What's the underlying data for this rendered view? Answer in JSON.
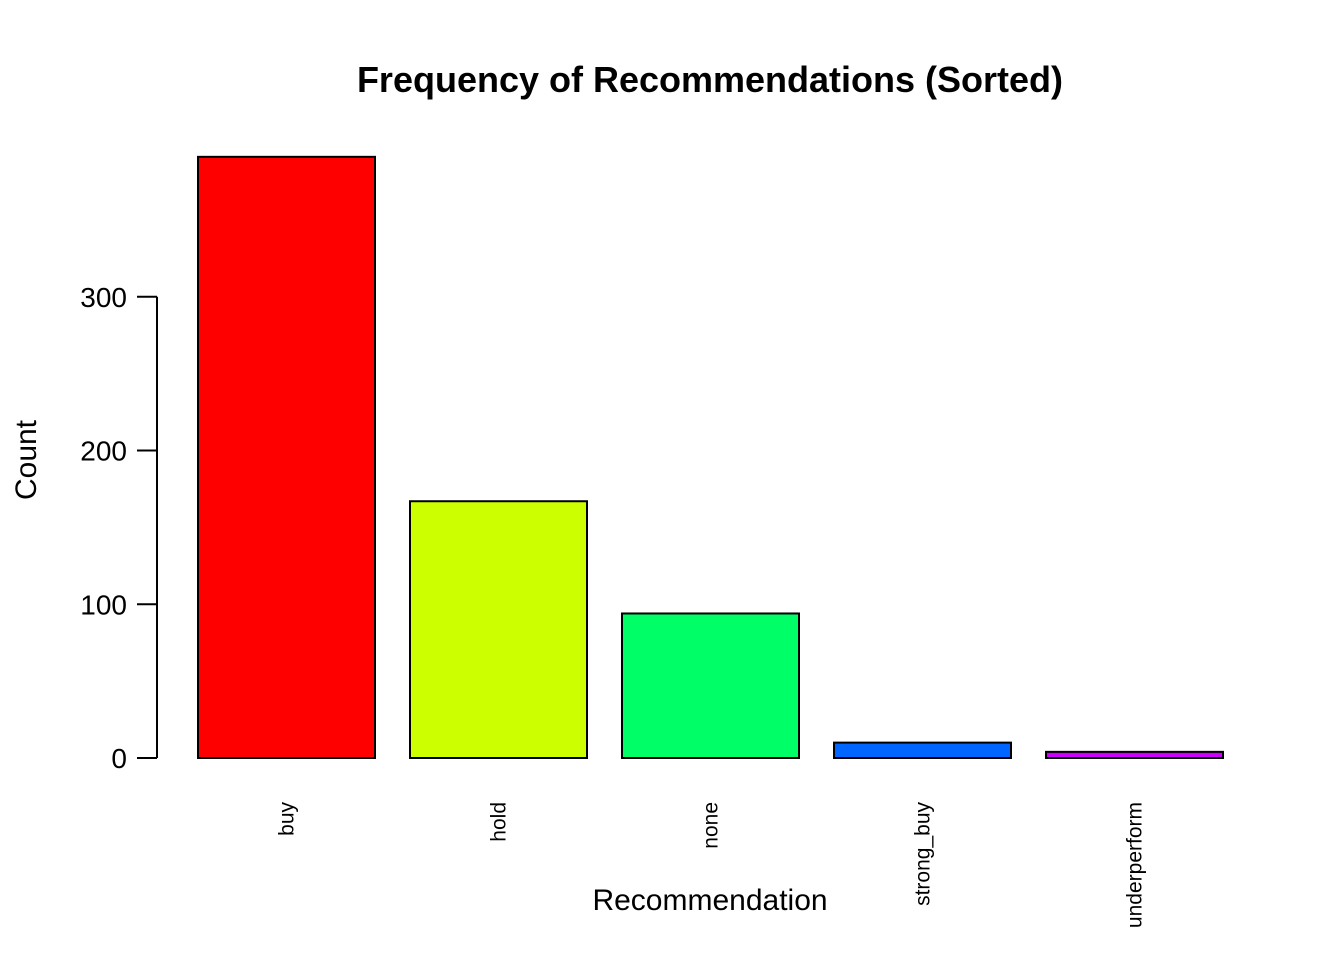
{
  "chart_data": {
    "type": "bar",
    "title": "Frequency of Recommendations (Sorted)",
    "xlabel": "Recommendation",
    "ylabel": "Count",
    "categories": [
      "buy",
      "hold",
      "none",
      "strong_buy",
      "underperform"
    ],
    "values": [
      391,
      167,
      94,
      10,
      4
    ],
    "colors": [
      "#FF0000",
      "#CCFF00",
      "#00FF66",
      "#0066FF",
      "#CC00FF"
    ],
    "yticks": [
      0,
      100,
      200,
      300
    ],
    "ylim": [
      0,
      391
    ],
    "grid": false,
    "legend": "none",
    "bar_border_color": "#000000"
  }
}
